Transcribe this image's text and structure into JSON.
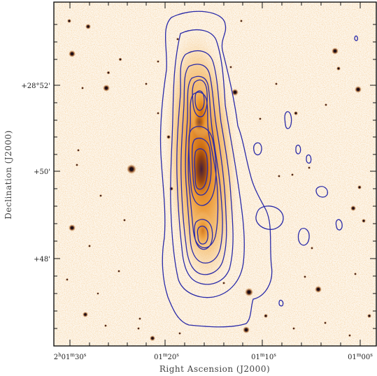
{
  "figure": {
    "xaxis_title": "Right Ascension (J2000)",
    "yaxis_title": "Declination (J2000)",
    "x_ticks": [
      {
        "label": "2h01m30s",
        "main": "2",
        "s1": "h",
        "m": "01",
        "s2": "m",
        "s": "30",
        "s3": "s"
      },
      {
        "label": "01m20s",
        "main": "",
        "s1": "",
        "m": "01",
        "s2": "m",
        "s": "20",
        "s3": "s"
      },
      {
        "label": "01m10s",
        "main": "",
        "s1": "",
        "m": "01",
        "s2": "m",
        "s": "10",
        "s3": "s"
      },
      {
        "label": "01m00s",
        "main": "",
        "s1": "",
        "m": "01",
        "s2": "m",
        "s": "00",
        "s3": "s"
      }
    ],
    "y_ticks": [
      {
        "label": "+28°52'"
      },
      {
        "label": "+50'"
      },
      {
        "label": "+48'"
      }
    ]
  }
}
